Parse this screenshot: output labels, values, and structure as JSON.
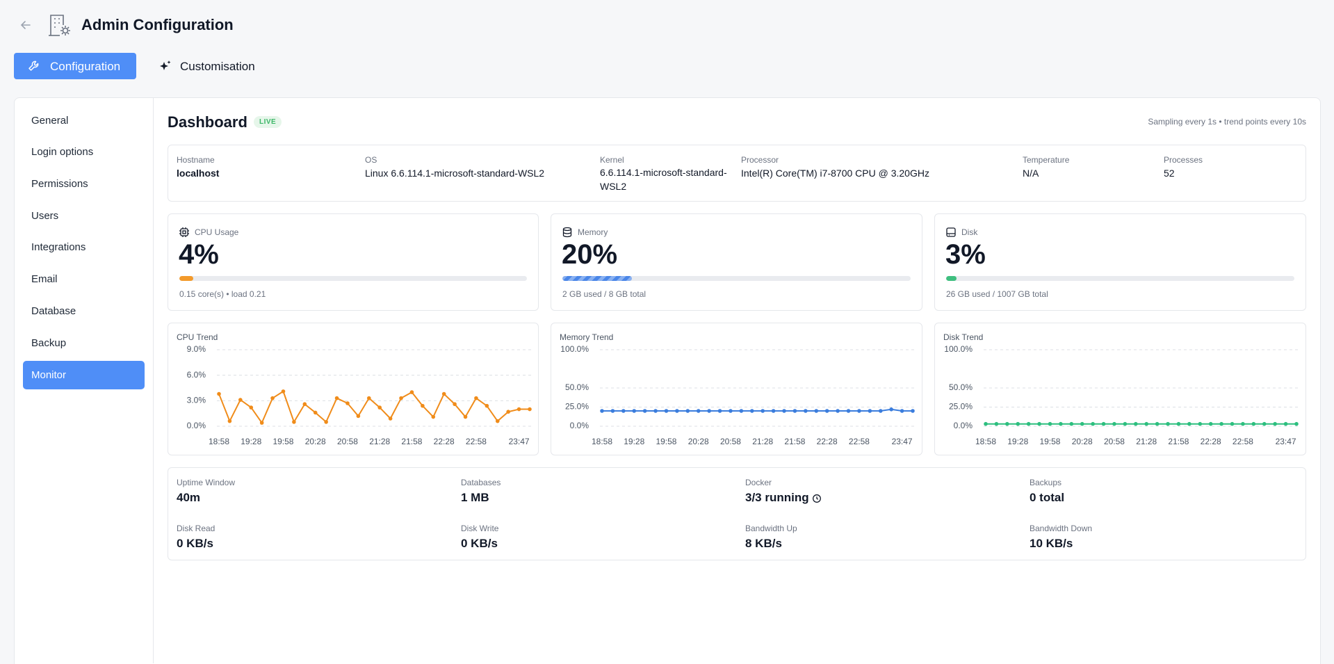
{
  "header": {
    "title": "Admin Configuration"
  },
  "tabs": [
    "Configuration",
    "Customisation"
  ],
  "sidebar": [
    "General",
    "Login options",
    "Permissions",
    "Users",
    "Integrations",
    "Email",
    "Database",
    "Backup",
    "Monitor"
  ],
  "dashboard": {
    "title": "Dashboard",
    "badge": "LIVE",
    "sampling": "Sampling every 1s • trend points every 10s"
  },
  "system_info": [
    {
      "label": "Hostname",
      "value": "localhost"
    },
    {
      "label": "OS",
      "value": "Linux 6.6.114.1-microsoft-standard-WSL2"
    },
    {
      "label": "Kernel",
      "value": "6.6.114.1-microsoft-standard-WSL2"
    },
    {
      "label": "Processor",
      "value": "Intel(R) Core(TM) i7-8700 CPU @ 3.20GHz"
    },
    {
      "label": "Temperature",
      "value": "N/A"
    },
    {
      "label": "Processes",
      "value": "52"
    }
  ],
  "metrics": [
    {
      "label": "CPU Usage",
      "value": 4,
      "value_label": "4%",
      "detail": "0.15 core(s) • load 0.21",
      "color": "#f39a2b"
    },
    {
      "label": "Memory",
      "value": 20,
      "value_label": "20%",
      "detail": "2 GB used / 8 GB total",
      "color": "#4a86e8"
    },
    {
      "label": "Disk",
      "value": 3,
      "value_label": "3%",
      "detail": "26 GB used / 1007 GB total",
      "color": "#3fbf7f"
    }
  ],
  "chart_data": [
    {
      "type": "line",
      "title": "CPU Trend",
      "categories": [
        "18:58",
        null,
        null,
        "19:28",
        null,
        null,
        "19:58",
        null,
        null,
        "20:28",
        null,
        null,
        "20:58",
        null,
        null,
        "21:28",
        null,
        null,
        "21:58",
        null,
        null,
        "22:28",
        null,
        null,
        "22:58",
        null,
        null,
        null,
        "23:47",
        null
      ],
      "series": [
        {
          "color": "#f08c1a",
          "values": [
            3.8,
            0.6,
            3.1,
            2.2,
            0.4,
            3.3,
            4.1,
            0.5,
            2.6,
            1.6,
            0.5,
            3.3,
            2.7,
            1.2,
            3.3,
            2.2,
            0.9,
            3.3,
            4.0,
            2.4,
            1.1,
            3.8,
            2.6,
            1.1,
            3.3,
            2.4,
            0.6,
            1.7,
            2.0,
            2.0
          ]
        }
      ],
      "ylim": [
        0,
        9
      ],
      "yticks": [
        {
          "value": 0,
          "label": "0.0%"
        },
        {
          "value": 3,
          "label": "3.0%"
        },
        {
          "value": 6,
          "label": "6.0%"
        },
        {
          "value": 9,
          "label": "9.0%"
        }
      ],
      "grid": true
    },
    {
      "type": "line",
      "title": "Memory Trend",
      "categories": [
        "18:58",
        null,
        null,
        "19:28",
        null,
        null,
        "19:58",
        null,
        null,
        "20:28",
        null,
        null,
        "20:58",
        null,
        null,
        "21:28",
        null,
        null,
        "21:58",
        null,
        null,
        "22:28",
        null,
        null,
        "22:58",
        null,
        null,
        null,
        "23:47",
        null
      ],
      "series": [
        {
          "color": "#3b7ddd",
          "values": [
            20,
            20,
            20,
            20,
            20,
            20,
            20,
            20,
            20,
            20,
            20,
            20,
            20,
            20,
            20,
            20,
            20,
            20,
            20,
            20,
            20,
            20,
            20,
            20,
            20,
            20,
            20,
            22,
            20,
            20
          ]
        }
      ],
      "ylim": [
        0,
        100
      ],
      "yticks": [
        {
          "value": 0,
          "label": "0.0%"
        },
        {
          "value": 25,
          "label": "25.0%"
        },
        {
          "value": 50,
          "label": "50.0%"
        },
        {
          "value": 100,
          "label": "100.0%"
        }
      ],
      "grid": true
    },
    {
      "type": "line",
      "title": "Disk Trend",
      "categories": [
        "18:58",
        null,
        null,
        "19:28",
        null,
        null,
        "19:58",
        null,
        null,
        "20:28",
        null,
        null,
        "20:58",
        null,
        null,
        "21:28",
        null,
        null,
        "21:58",
        null,
        null,
        "22:28",
        null,
        null,
        "22:58",
        null,
        null,
        null,
        "23:47",
        null
      ],
      "series": [
        {
          "color": "#2dbf7f",
          "values": [
            3,
            3,
            3,
            3,
            3,
            3,
            3,
            3,
            3,
            3,
            3,
            3,
            3,
            3,
            3,
            3,
            3,
            3,
            3,
            3,
            3,
            3,
            3,
            3,
            3,
            3,
            3,
            3,
            3,
            3
          ]
        }
      ],
      "ylim": [
        0,
        100
      ],
      "yticks": [
        {
          "value": 0,
          "label": "0.0%"
        },
        {
          "value": 25,
          "label": "25.0%"
        },
        {
          "value": 50,
          "label": "50.0%"
        },
        {
          "value": 100,
          "label": "100.0%"
        }
      ],
      "grid": true
    }
  ],
  "stats": [
    {
      "label": "Uptime Window",
      "value": "40m"
    },
    {
      "label": "Databases",
      "value": "1 MB"
    },
    {
      "label": "Docker",
      "value": "3/3 running"
    },
    {
      "label": "Backups",
      "value": "0 total"
    },
    {
      "label": "Disk Read",
      "value": "0 KB/s"
    },
    {
      "label": "Disk Write",
      "value": "0 KB/s"
    },
    {
      "label": "Bandwidth Up",
      "value": "8 KB/s"
    },
    {
      "label": "Bandwidth Down",
      "value": "10 KB/s"
    }
  ]
}
